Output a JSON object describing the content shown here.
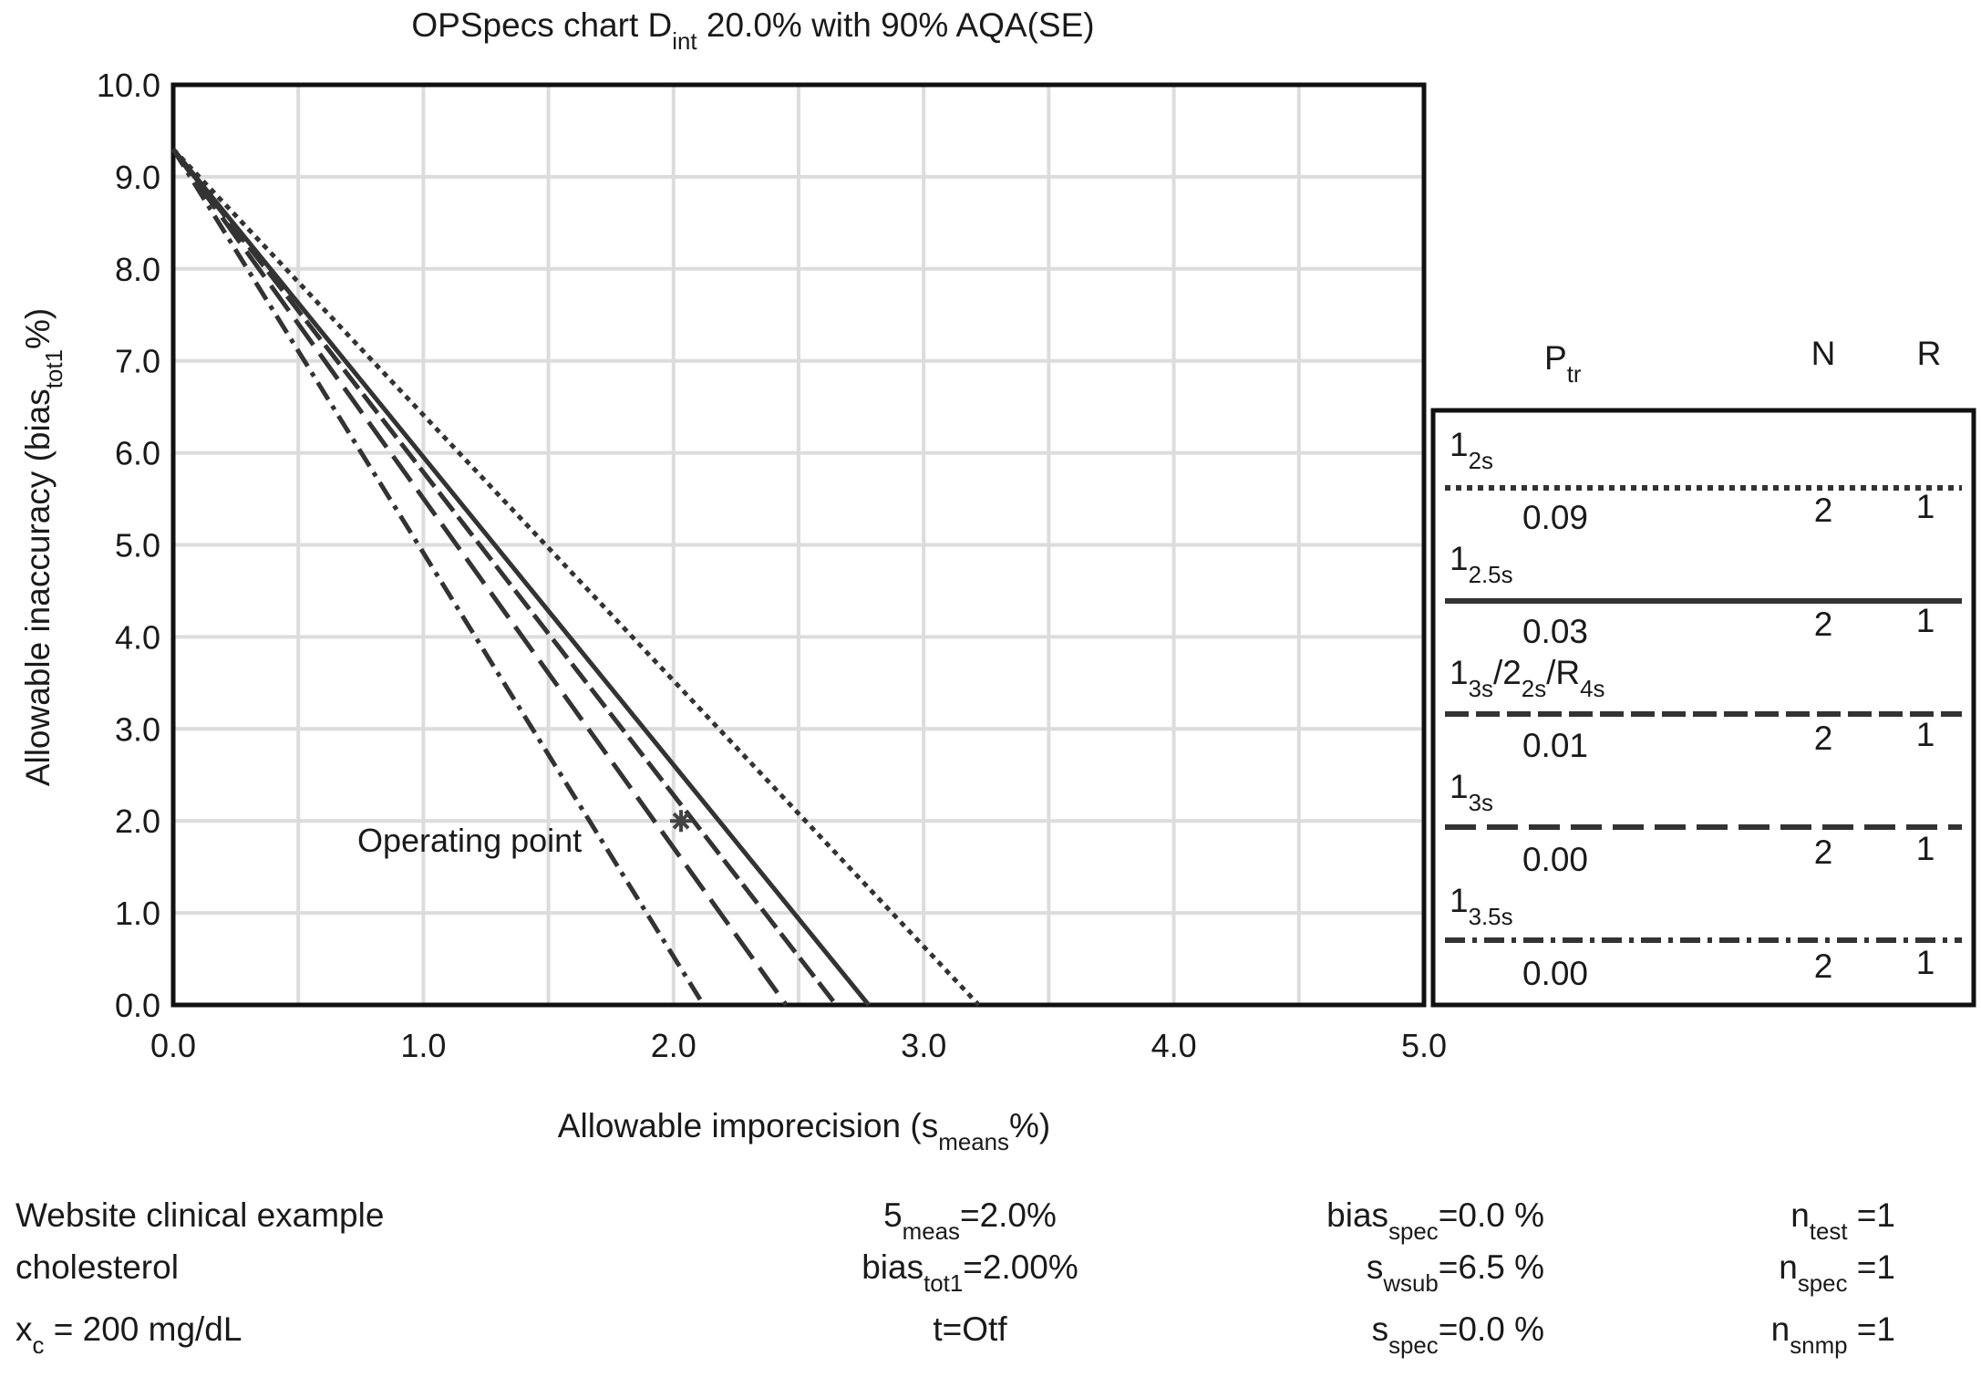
{
  "chart_data": {
    "type": "line",
    "title": [
      "OPSpecs chart D",
      {
        "sub": "int"
      },
      " 20.0% with 90% AQA(SE)"
    ],
    "x_label": [
      "Allowable imporecision (s",
      {
        "sub": "means"
      },
      "%)"
    ],
    "y_label": [
      "Allowable inaccuracy (bias",
      {
        "sub": "tot1"
      },
      "%)"
    ],
    "xlim": [
      0,
      5
    ],
    "ylim": [
      0,
      10
    ],
    "xticks": [
      {
        "value": 0,
        "label": "0.0"
      },
      {
        "value": 1,
        "label": "1.0"
      },
      {
        "value": 2,
        "label": "2.0"
      },
      {
        "value": 3,
        "label": "3.0"
      },
      {
        "value": 4,
        "label": "4.0"
      },
      {
        "value": 5,
        "label": "5.0"
      }
    ],
    "x_minor_ticks": [
      0.5,
      1.5,
      2.5,
      3.5,
      4.5
    ],
    "yticks": [
      {
        "value": 0,
        "label": "0.0"
      },
      {
        "value": 1,
        "label": "1.0"
      },
      {
        "value": 2,
        "label": "2.0"
      },
      {
        "value": 3,
        "label": "3.0"
      },
      {
        "value": 4,
        "label": "4.0"
      },
      {
        "value": 5,
        "label": "5.0"
      },
      {
        "value": 6,
        "label": "6.0"
      },
      {
        "value": 7,
        "label": "7.0"
      },
      {
        "value": 8,
        "label": "8.0"
      },
      {
        "value": 9,
        "label": "9.0"
      },
      {
        "value": 10,
        "label": "10.0"
      }
    ],
    "grid": true,
    "legend_headers": [
      [
        "P",
        {
          "sub": "tr"
        }
      ],
      "N",
      "R"
    ],
    "series": [
      {
        "name": [
          "1",
          {
            "sub": "2s"
          }
        ],
        "color": "#333333",
        "dash": "dotted",
        "x": [
          0,
          3.22
        ],
        "values": [
          9.3,
          0
        ],
        "ptr": "0.09",
        "n": 2,
        "r": 1
      },
      {
        "name": [
          "1",
          {
            "sub": "2.5s"
          }
        ],
        "color": "#333333",
        "dash": "solid",
        "x": [
          0,
          2.78
        ],
        "values": [
          9.3,
          0
        ],
        "ptr": "0.03",
        "n": 2,
        "r": 1
      },
      {
        "name": [
          "1",
          {
            "sub": "3s"
          },
          "/2",
          {
            "sub": "2s"
          },
          "/R",
          {
            "sub": "4s"
          }
        ],
        "color": "#333333",
        "dash": "dashed",
        "x": [
          0,
          2.65
        ],
        "values": [
          9.3,
          0
        ],
        "ptr": "0.01",
        "n": 2,
        "r": 1
      },
      {
        "name": [
          "1",
          {
            "sub": "3s"
          }
        ],
        "color": "#333333",
        "dash": "long-dashed",
        "x": [
          0,
          2.45
        ],
        "values": [
          9.3,
          0
        ],
        "ptr": "0.00",
        "n": 2,
        "r": 1
      },
      {
        "name": [
          "1",
          {
            "sub": "3.5s"
          }
        ],
        "color": "#333333",
        "dash": "dash-dot",
        "x": [
          0,
          2.12
        ],
        "values": [
          9.3,
          0
        ],
        "ptr": "0.00",
        "n": 2,
        "r": 1
      }
    ],
    "operating_point": {
      "x": 2.03,
      "y": 2.0,
      "label": "Operating point"
    },
    "notes": [
      [
        "Website clinical example",
        "cholesterol",
        [
          "x",
          {
            "sub": "c"
          },
          " = 200 mg/dL"
        ]
      ],
      [
        [
          "5",
          {
            "sub": "meas"
          },
          "=2.0%"
        ],
        [
          "bias",
          {
            "sub": "tot1"
          },
          "=2.00%"
        ],
        "t=Otf"
      ],
      [
        [
          "bias",
          {
            "sub": "spec"
          },
          "=0.0 %"
        ],
        [
          "s",
          {
            "sub": "wsub"
          },
          "=6.5 %"
        ],
        [
          "s",
          {
            "sub": "spec"
          },
          "=0.0 %"
        ]
      ],
      [
        [
          "n",
          {
            "sub": "test"
          },
          " =1"
        ],
        [
          "n",
          {
            "sub": "spec"
          },
          " =1"
        ],
        [
          "n",
          {
            "sub": "snmp"
          },
          " =1"
        ]
      ]
    ]
  }
}
